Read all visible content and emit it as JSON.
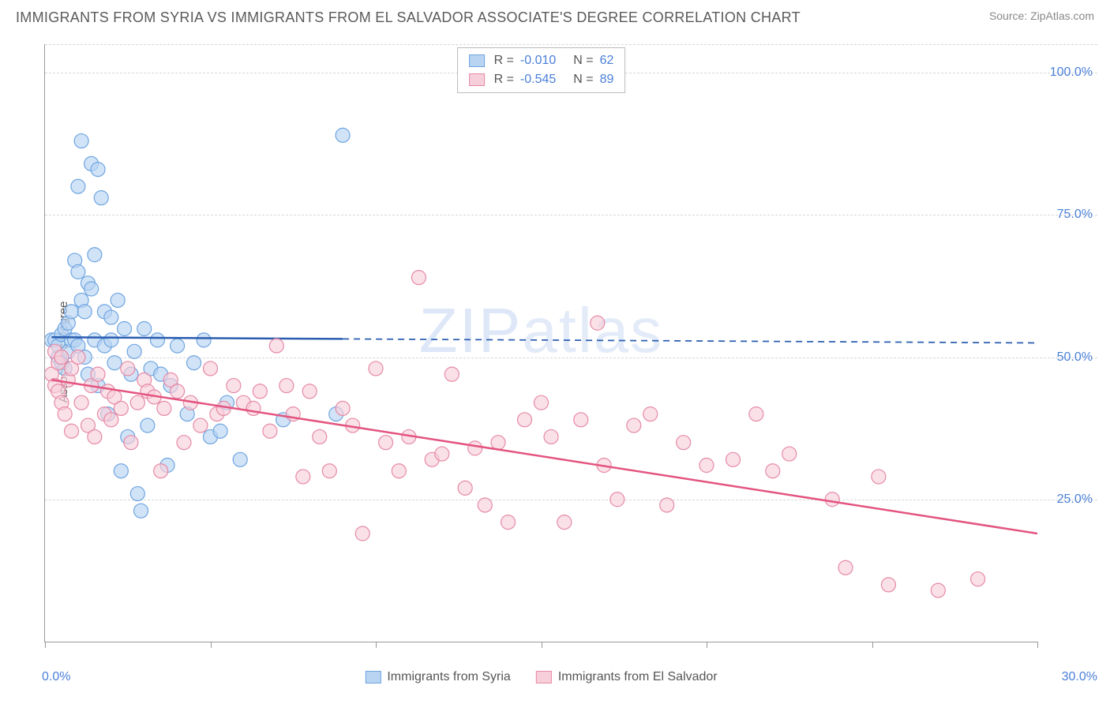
{
  "header": {
    "title": "IMMIGRANTS FROM SYRIA VS IMMIGRANTS FROM EL SALVADOR ASSOCIATE'S DEGREE CORRELATION CHART",
    "source_label": "Source: ",
    "source_value": "ZipAtlas.com"
  },
  "watermark": {
    "bold": "ZIP",
    "thin": "atlas"
  },
  "axes": {
    "y_label": "Associate's Degree",
    "x_min": 0.0,
    "x_max": 30.0,
    "y_min": 0.0,
    "y_max": 105.0,
    "y_ticks": [
      25.0,
      50.0,
      75.0,
      100.0
    ],
    "y_tick_labels": [
      "25.0%",
      "50.0%",
      "75.0%",
      "100.0%"
    ],
    "x_tick_positions": [
      0,
      5,
      10,
      15,
      20,
      25,
      30
    ],
    "x_min_label": "0.0%",
    "x_max_label": "30.0%",
    "grid_color": "#d8d8d8",
    "axis_color": "#999999",
    "tick_label_color": "#4a7fd8",
    "label_color": "#555555",
    "label_fontsize": 15,
    "tick_fontsize": 16
  },
  "series": [
    {
      "id": "syria",
      "name": "Immigrants from Syria",
      "fill": "#b9d4f2",
      "stroke": "#6fa5e0",
      "line_color": "#2a5db0",
      "line_dash_color": "#2a5db0",
      "r_value": "-0.010",
      "n_value": "62",
      "marker_r": 9,
      "line_width": 2.5,
      "trend": {
        "x1": 0.2,
        "y1": 53.5,
        "x2": 30.0,
        "y2": 52.5,
        "solid_until_x": 9.0
      },
      "points": [
        [
          0.2,
          53
        ],
        [
          0.3,
          53
        ],
        [
          0.4,
          50
        ],
        [
          0.4,
          52
        ],
        [
          0.5,
          49
        ],
        [
          0.5,
          54
        ],
        [
          0.6,
          55
        ],
        [
          0.6,
          48
        ],
        [
          0.7,
          56
        ],
        [
          0.7,
          51
        ],
        [
          0.8,
          58
        ],
        [
          0.8,
          53
        ],
        [
          0.9,
          67
        ],
        [
          0.9,
          53
        ],
        [
          1.0,
          65
        ],
        [
          1.0,
          52
        ],
        [
          1.0,
          80
        ],
        [
          1.1,
          60
        ],
        [
          1.1,
          88
        ],
        [
          1.2,
          58
        ],
        [
          1.2,
          50
        ],
        [
          1.3,
          63
        ],
        [
          1.3,
          47
        ],
        [
          1.4,
          84
        ],
        [
          1.4,
          62
        ],
        [
          1.5,
          53
        ],
        [
          1.5,
          68
        ],
        [
          1.6,
          83
        ],
        [
          1.6,
          45
        ],
        [
          1.7,
          78
        ],
        [
          1.8,
          58
        ],
        [
          1.8,
          52
        ],
        [
          1.9,
          40
        ],
        [
          2.0,
          53
        ],
        [
          2.0,
          57
        ],
        [
          2.1,
          49
        ],
        [
          2.2,
          60
        ],
        [
          2.3,
          30
        ],
        [
          2.4,
          55
        ],
        [
          2.5,
          36
        ],
        [
          2.6,
          47
        ],
        [
          2.7,
          51
        ],
        [
          2.8,
          26
        ],
        [
          2.9,
          23
        ],
        [
          3.0,
          55
        ],
        [
          3.1,
          38
        ],
        [
          3.2,
          48
        ],
        [
          3.4,
          53
        ],
        [
          3.5,
          47
        ],
        [
          3.7,
          31
        ],
        [
          3.8,
          45
        ],
        [
          4.0,
          52
        ],
        [
          4.3,
          40
        ],
        [
          4.5,
          49
        ],
        [
          4.8,
          53
        ],
        [
          5.0,
          36
        ],
        [
          5.3,
          37
        ],
        [
          5.5,
          42
        ],
        [
          5.9,
          32
        ],
        [
          7.2,
          39
        ],
        [
          8.8,
          40
        ],
        [
          9.0,
          89
        ]
      ]
    },
    {
      "id": "elsalvador",
      "name": "Immigrants from El Salvador",
      "fill": "#f7cfda",
      "stroke": "#e68aa7",
      "line_color": "#e35480",
      "r_value": "-0.545",
      "n_value": "89",
      "marker_r": 9,
      "line_width": 2.5,
      "trend": {
        "x1": 0.2,
        "y1": 46.0,
        "x2": 30.0,
        "y2": 19.0,
        "solid_until_x": 30.0
      },
      "points": [
        [
          0.2,
          47
        ],
        [
          0.3,
          51
        ],
        [
          0.3,
          45
        ],
        [
          0.4,
          44
        ],
        [
          0.4,
          49
        ],
        [
          0.5,
          42
        ],
        [
          0.5,
          50
        ],
        [
          0.6,
          40
        ],
        [
          0.7,
          46
        ],
        [
          0.8,
          48
        ],
        [
          0.8,
          37
        ],
        [
          1.0,
          50
        ],
        [
          1.1,
          42
        ],
        [
          1.3,
          38
        ],
        [
          1.4,
          45
        ],
        [
          1.5,
          36
        ],
        [
          1.6,
          47
        ],
        [
          1.8,
          40
        ],
        [
          1.9,
          44
        ],
        [
          2.0,
          39
        ],
        [
          2.1,
          43
        ],
        [
          2.3,
          41
        ],
        [
          2.5,
          48
        ],
        [
          2.6,
          35
        ],
        [
          2.8,
          42
        ],
        [
          3.0,
          46
        ],
        [
          3.1,
          44
        ],
        [
          3.3,
          43
        ],
        [
          3.5,
          30
        ],
        [
          3.6,
          41
        ],
        [
          3.8,
          46
        ],
        [
          4.0,
          44
        ],
        [
          4.2,
          35
        ],
        [
          4.4,
          42
        ],
        [
          4.7,
          38
        ],
        [
          5.0,
          48
        ],
        [
          5.2,
          40
        ],
        [
          5.4,
          41
        ],
        [
          5.7,
          45
        ],
        [
          6.0,
          42
        ],
        [
          6.3,
          41
        ],
        [
          6.5,
          44
        ],
        [
          6.8,
          37
        ],
        [
          7.0,
          52
        ],
        [
          7.3,
          45
        ],
        [
          7.5,
          40
        ],
        [
          7.8,
          29
        ],
        [
          8.0,
          44
        ],
        [
          8.3,
          36
        ],
        [
          8.6,
          30
        ],
        [
          9.0,
          41
        ],
        [
          9.3,
          38
        ],
        [
          9.6,
          19
        ],
        [
          10.0,
          48
        ],
        [
          10.3,
          35
        ],
        [
          10.7,
          30
        ],
        [
          11.0,
          36
        ],
        [
          11.3,
          64
        ],
        [
          11.7,
          32
        ],
        [
          12.0,
          33
        ],
        [
          12.3,
          47
        ],
        [
          12.7,
          27
        ],
        [
          13.0,
          34
        ],
        [
          13.3,
          24
        ],
        [
          13.7,
          35
        ],
        [
          14.0,
          21
        ],
        [
          14.5,
          39
        ],
        [
          15.0,
          42
        ],
        [
          15.3,
          36
        ],
        [
          15.7,
          21
        ],
        [
          16.2,
          39
        ],
        [
          16.7,
          56
        ],
        [
          16.9,
          31
        ],
        [
          17.3,
          25
        ],
        [
          17.8,
          38
        ],
        [
          18.3,
          40
        ],
        [
          18.8,
          24
        ],
        [
          19.3,
          35
        ],
        [
          20.0,
          31
        ],
        [
          20.8,
          32
        ],
        [
          21.5,
          40
        ],
        [
          22.0,
          30
        ],
        [
          22.5,
          33
        ],
        [
          23.8,
          25
        ],
        [
          24.2,
          13
        ],
        [
          25.2,
          29
        ],
        [
          25.5,
          10
        ],
        [
          27.0,
          9
        ],
        [
          28.2,
          11
        ]
      ]
    }
  ],
  "legend_top": {
    "r_label": "R =",
    "n_label": "N ="
  },
  "background_color": "#ffffff"
}
